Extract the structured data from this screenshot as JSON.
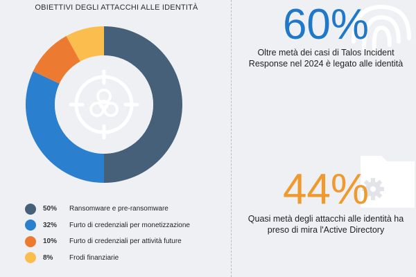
{
  "chart_data": {
    "type": "pie",
    "title": "OBIETTIVI DEGLI ATTACCHI ALLE IDENTITÀ",
    "slices": [
      {
        "label": "Ransomware e pre-ransomware",
        "value": 50,
        "display": "50%",
        "color": "#46607a"
      },
      {
        "label": "Furto di credenziali per monetizzazione",
        "value": 32,
        "display": "32%",
        "color": "#2b7fcf"
      },
      {
        "label": "Furto di credenziali per attività future",
        "value": 10,
        "display": "10%",
        "color": "#ec7a30"
      },
      {
        "label": "Frodi finanziarie",
        "value": 8,
        "display": "8%",
        "color": "#fbbe4e"
      }
    ]
  },
  "colors": {
    "blue_stat": "#1f78c8",
    "orange_stat": "#ef9a2e",
    "divider": "#b9bcc4"
  },
  "icons": {
    "center": "biohazard-target-icon",
    "stat1": "fingerprint-icon",
    "stat2": "folder-gear-icon"
  },
  "stats": [
    {
      "value": "60%",
      "text": "Oltre metà dei casi di Talos Incident Response nel 2024 è legato alle identità"
    },
    {
      "value": "44%",
      "text": "Quasi metà degli attacchi alle identità ha preso di mira l'Active Directory"
    }
  ]
}
